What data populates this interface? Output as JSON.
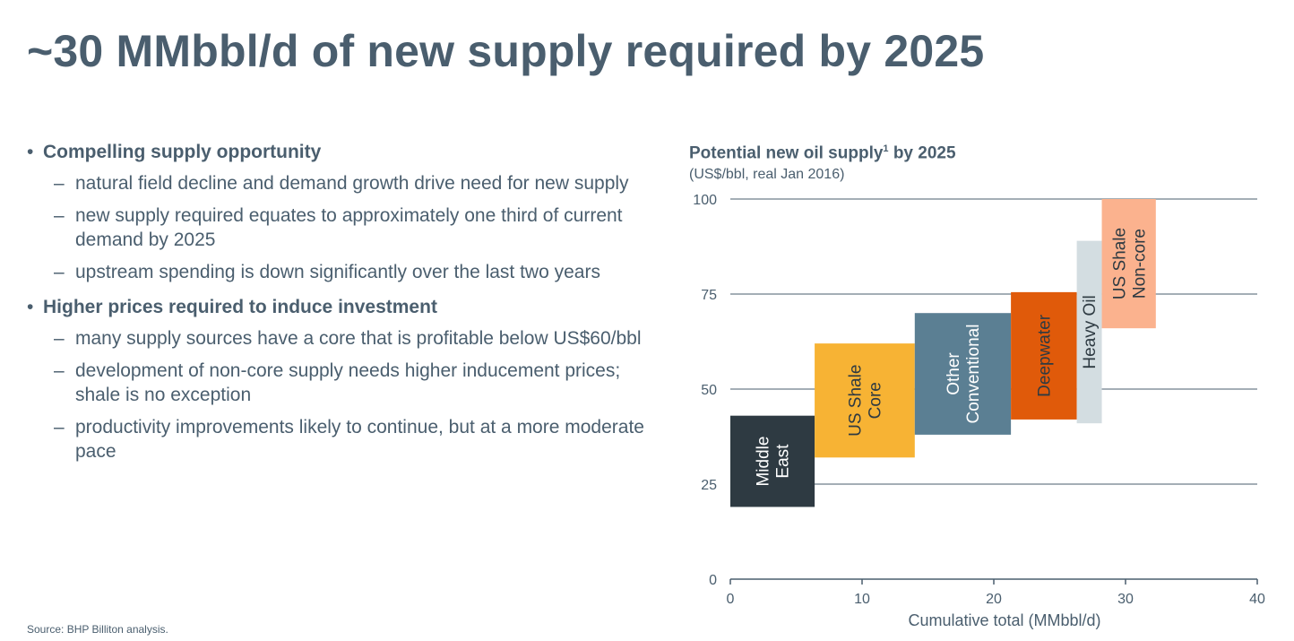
{
  "title": "~30 MMbbl/d of new supply required by 2025",
  "bullets": [
    {
      "heading": "Compelling supply opportunity",
      "items": [
        "natural field decline and demand growth drive need for new supply",
        "new supply required equates to approximately one third of current demand by 2025",
        "upstream spending is down significantly over the last two years"
      ]
    },
    {
      "heading": "Higher prices required to induce investment",
      "items": [
        "many supply sources have a core that is profitable below US$60/bbl",
        "development of non-core supply needs higher inducement prices; shale is no exception",
        "productivity improvements likely to continue, but at a more moderate pace"
      ]
    }
  ],
  "source": "Source:   BHP Billiton analysis.",
  "chart_title": "Potential new oil supply",
  "chart_title_sup": "1",
  "chart_title_suffix": " by 2025",
  "chart_subtitle": "(US$/bbl, real Jan 2016)",
  "chart_data": {
    "type": "bar",
    "subtype": "floating-range",
    "title": "Potential new oil supply by 2025",
    "subtitle": "(US$/bbl, real Jan 2016)",
    "xlabel": "Cumulative total (MMbbl/d)",
    "ylabel": "",
    "xlim": [
      0,
      40
    ],
    "ylim": [
      0,
      100
    ],
    "xticks": [
      0,
      10,
      20,
      30,
      40
    ],
    "yticks": [
      0,
      25,
      50,
      75,
      100
    ],
    "grid": true,
    "series": [
      {
        "name": "Middle East",
        "x_start": 0,
        "x_end": 6.4,
        "y_low": 19,
        "y_high": 43,
        "color": "#2e3a42",
        "label_color": "#ffffff"
      },
      {
        "name": "US Shale Core",
        "x_start": 6.4,
        "x_end": 14.0,
        "y_low": 32,
        "y_high": 62,
        "color": "#f7b334",
        "label_color": "#2e3a42"
      },
      {
        "name": "Other Conventional",
        "x_start": 14.0,
        "x_end": 21.3,
        "y_low": 38,
        "y_high": 70,
        "color": "#5b7f93",
        "label_color": "#ffffff"
      },
      {
        "name": "Deepwater",
        "x_start": 21.3,
        "x_end": 26.3,
        "y_low": 42,
        "y_high": 75.5,
        "color": "#e05a0a",
        "label_color": "#2e3a42"
      },
      {
        "name": "Heavy Oil",
        "x_start": 26.3,
        "x_end": 28.2,
        "y_low": 41,
        "y_high": 89,
        "color": "#d3dde1",
        "label_color": "#2e3a42"
      },
      {
        "name": "US Shale Non-core",
        "x_start": 28.2,
        "x_end": 32.3,
        "y_low": 66,
        "y_high": 100,
        "color": "#fbb28e",
        "label_color": "#2e3a42"
      }
    ],
    "bar_labels": [
      [
        "Middle",
        "East"
      ],
      [
        "US Shale",
        "Core"
      ],
      [
        "Other",
        "Conventional"
      ],
      [
        "Deepwater"
      ],
      [
        "Heavy Oil"
      ],
      [
        "US Shale",
        "Non-core"
      ]
    ]
  }
}
